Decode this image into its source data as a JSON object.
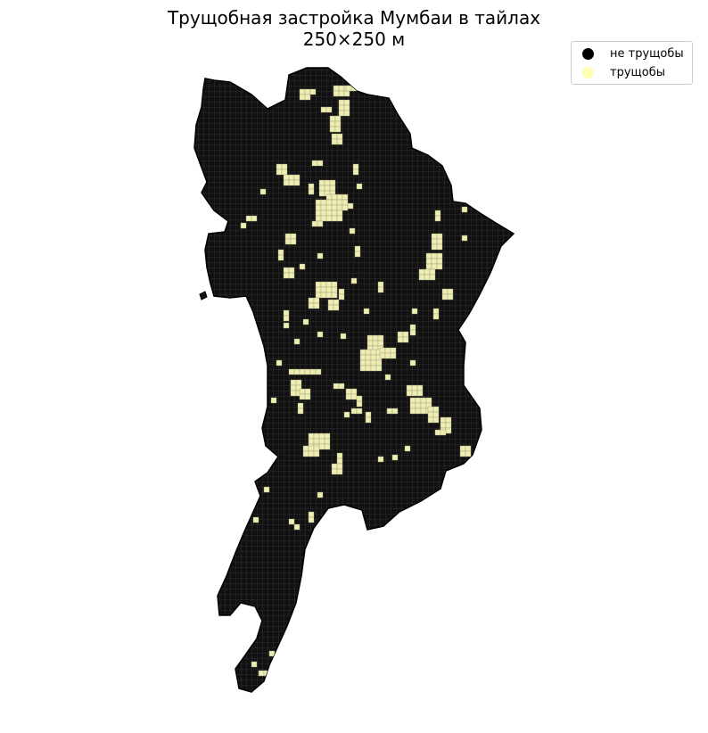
{
  "title_line1": "Трущобная застройка Мумбаи в тайлах",
  "title_line2": "250×250 м",
  "legend": {
    "items": [
      {
        "label": "не трущобы",
        "color": "#000000"
      },
      {
        "label": "трущобы",
        "color": "#ffffb3"
      }
    ]
  },
  "colors": {
    "non_slum_tile": "#111111",
    "slum_tile": "#eeeeb4",
    "grid_line": "#555555"
  }
}
